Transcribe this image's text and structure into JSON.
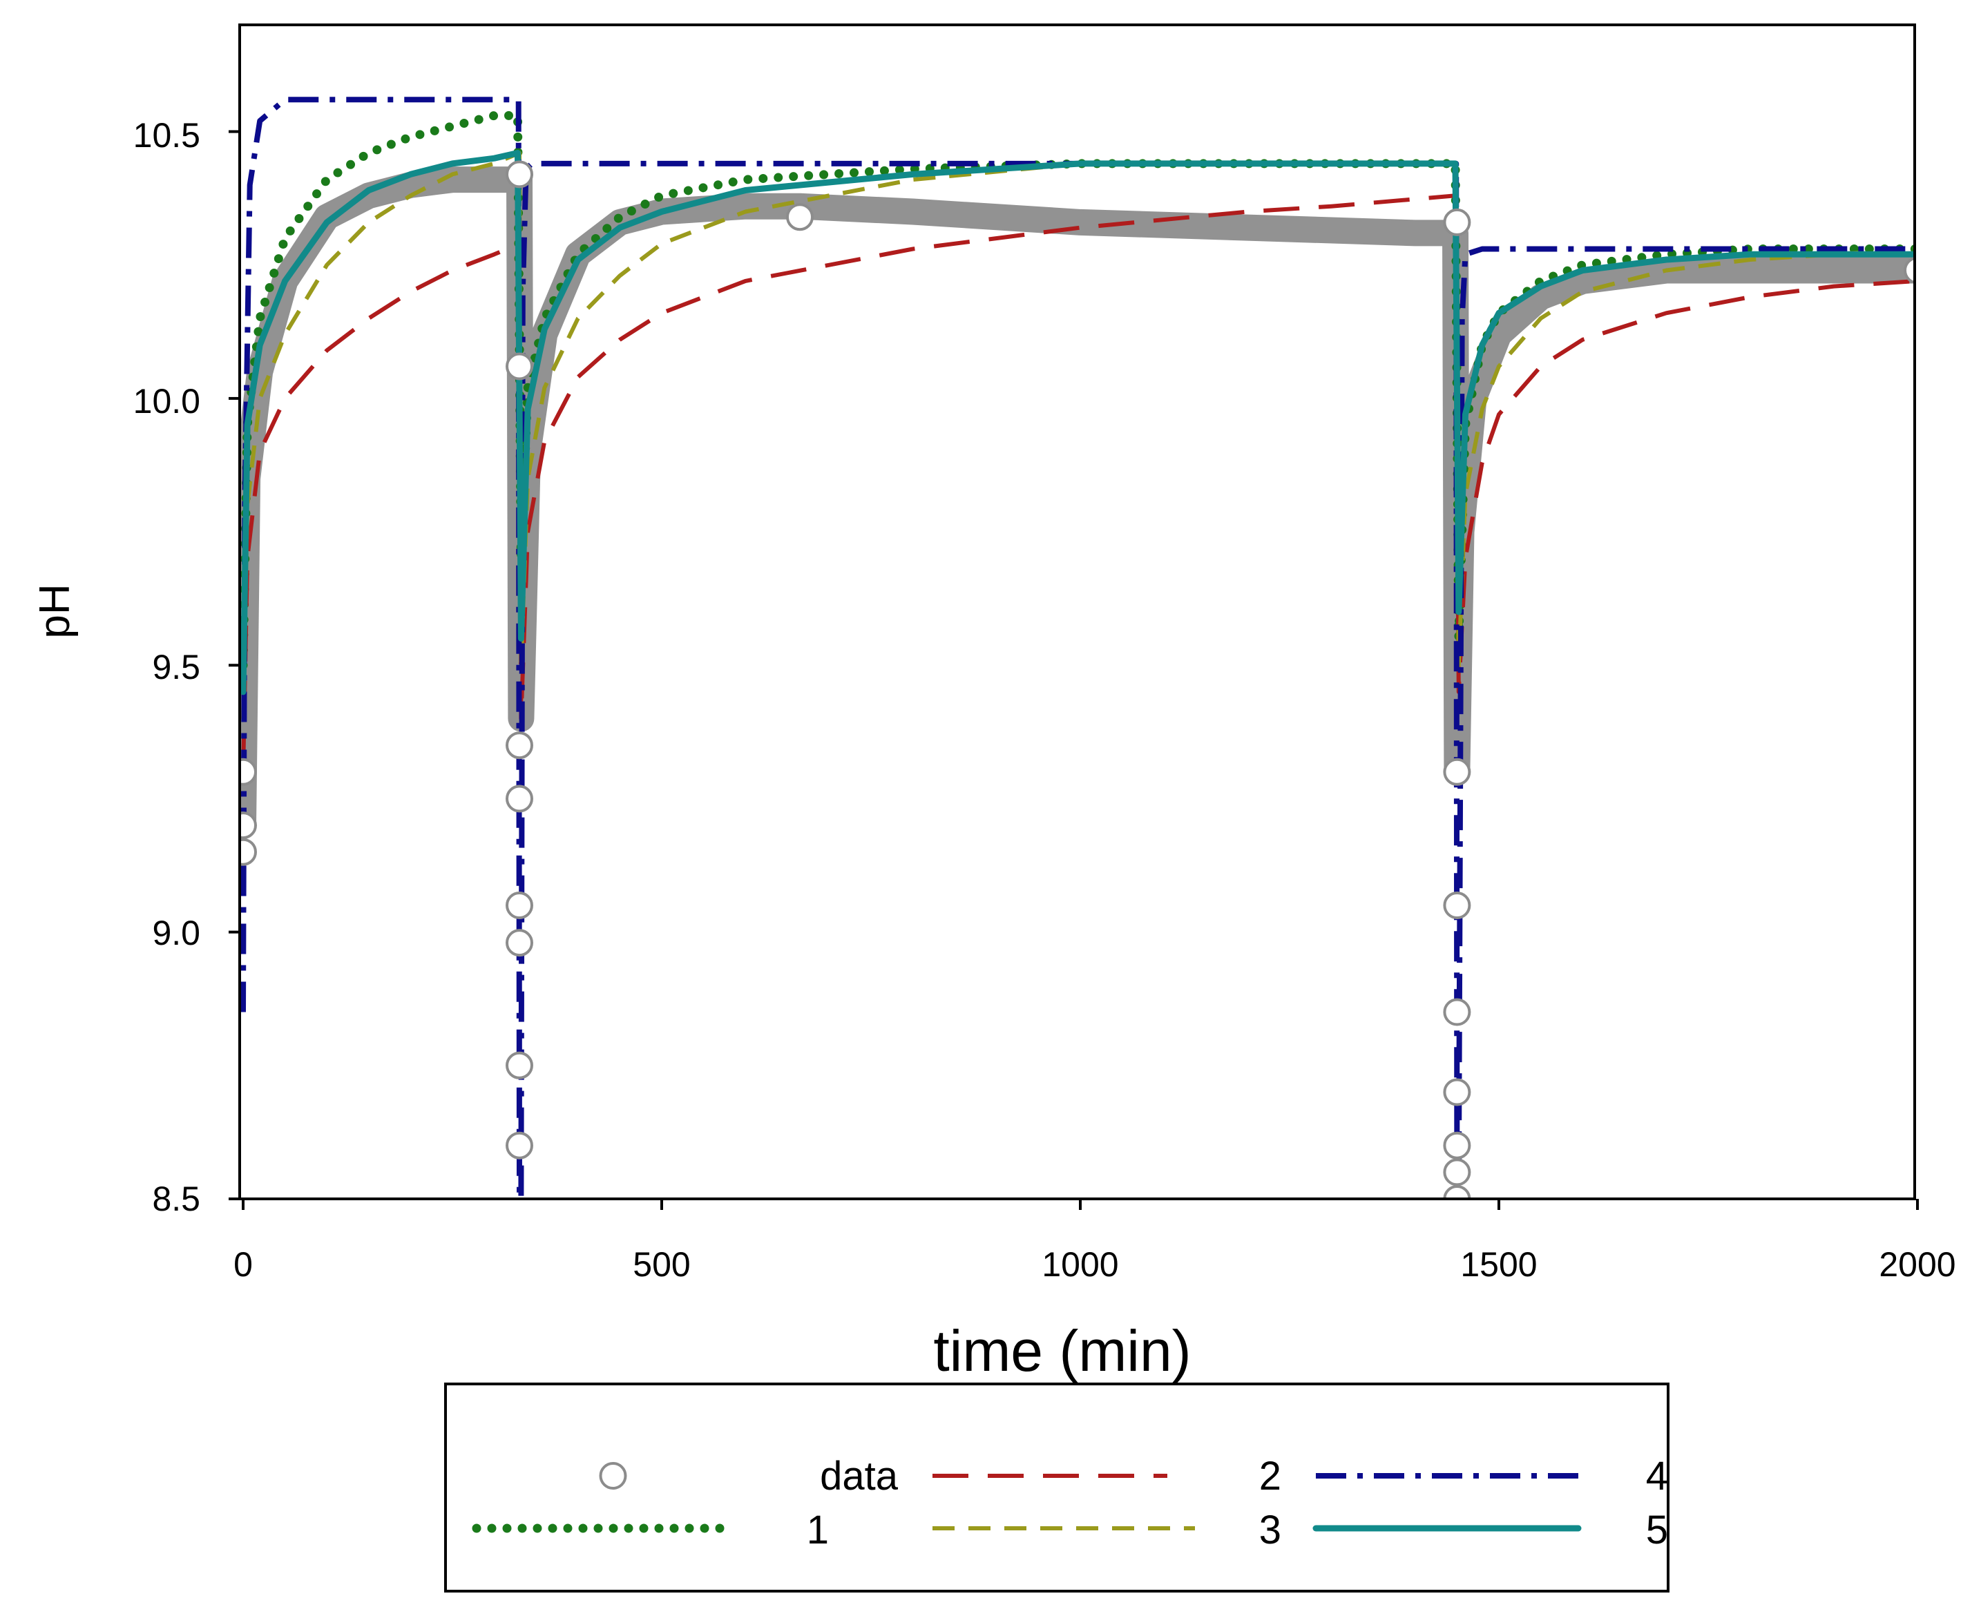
{
  "chart_data": {
    "type": "line",
    "title": "",
    "xlabel": "time (min)",
    "ylabel": "pH",
    "xlim": [
      0,
      2000
    ],
    "ylim": [
      8.5,
      10.7
    ],
    "xticks": [
      "0",
      "500",
      "1000",
      "1500",
      "2000"
    ],
    "yticks": [
      "8.5",
      "9.0",
      "9.5",
      "10.0",
      "10.5"
    ],
    "legend_position": "bottom",
    "colors": {
      "data": "#8c8c8c",
      "1": "#1a7a1a",
      "2": "#b01c1c",
      "3": "#9a9a1c",
      "4": "#0b0b8c",
      "5": "#118a8a"
    },
    "markers": {
      "x": [
        0,
        0,
        0,
        330,
        330,
        330,
        330,
        330,
        330,
        330,
        330,
        665,
        1450,
        1450,
        1450,
        1450,
        1450,
        1450,
        1450,
        1450,
        2000
      ],
      "y": [
        9.15,
        9.2,
        9.3,
        10.06,
        9.35,
        9.25,
        9.05,
        8.98,
        8.75,
        8.6,
        10.42,
        10.34,
        10.33,
        9.3,
        9.05,
        8.85,
        8.7,
        8.6,
        8.55,
        8.5,
        10.24
      ]
    },
    "series": [
      {
        "name": "data",
        "style": "thick-band",
        "x": [
          0,
          5,
          20,
          50,
          100,
          150,
          200,
          250,
          300,
          330,
          332,
          340,
          360,
          400,
          450,
          500,
          600,
          665,
          800,
          1000,
          1200,
          1400,
          1448,
          1450,
          1455,
          1470,
          1500,
          1550,
          1600,
          1700,
          1800,
          2000
        ],
        "y": [
          9.2,
          9.85,
          10.05,
          10.22,
          10.34,
          10.38,
          10.4,
          10.41,
          10.41,
          10.41,
          9.4,
          9.9,
          10.12,
          10.27,
          10.33,
          10.35,
          10.36,
          10.36,
          10.35,
          10.33,
          10.32,
          10.31,
          10.31,
          9.3,
          9.75,
          10.0,
          10.12,
          10.19,
          10.22,
          10.24,
          10.24,
          10.24
        ]
      },
      {
        "name": "1",
        "style": "dotted",
        "x": [
          0,
          5,
          20,
          50,
          100,
          150,
          200,
          250,
          300,
          328,
          332,
          340,
          360,
          400,
          450,
          500,
          600,
          800,
          1000,
          1200,
          1448,
          1452,
          1460,
          1480,
          1500,
          1550,
          1600,
          1700,
          1800,
          2000
        ],
        "y": [
          9.5,
          9.95,
          10.15,
          10.3,
          10.41,
          10.46,
          10.49,
          10.51,
          10.53,
          10.53,
          9.7,
          10.02,
          10.15,
          10.27,
          10.34,
          10.38,
          10.41,
          10.43,
          10.44,
          10.44,
          10.44,
          9.55,
          9.95,
          10.1,
          10.16,
          10.22,
          10.25,
          10.27,
          10.28,
          10.28
        ]
      },
      {
        "name": "2",
        "style": "long-dash",
        "x": [
          0,
          5,
          20,
          50,
          100,
          150,
          200,
          250,
          300,
          330,
          332,
          340,
          360,
          400,
          450,
          500,
          600,
          800,
          1000,
          1200,
          1300,
          1448,
          1452,
          1460,
          1480,
          1500,
          1550,
          1600,
          1700,
          1800,
          1900,
          2000
        ],
        "y": [
          9.3,
          9.7,
          9.9,
          10.0,
          10.09,
          10.15,
          10.2,
          10.24,
          10.27,
          10.29,
          9.4,
          9.75,
          9.92,
          10.04,
          10.11,
          10.16,
          10.22,
          10.28,
          10.32,
          10.35,
          10.36,
          10.38,
          9.45,
          9.7,
          9.88,
          9.97,
          10.06,
          10.11,
          10.16,
          10.19,
          10.21,
          10.22
        ]
      },
      {
        "name": "3",
        "style": "dash",
        "x": [
          0,
          5,
          20,
          50,
          100,
          150,
          200,
          250,
          300,
          330,
          332,
          340,
          360,
          400,
          450,
          500,
          600,
          800,
          1000,
          1200,
          1448,
          1452,
          1460,
          1480,
          1500,
          1550,
          1600,
          1700,
          1800,
          1900,
          2000
        ],
        "y": [
          9.4,
          9.8,
          10.0,
          10.12,
          10.25,
          10.33,
          10.38,
          10.42,
          10.44,
          10.46,
          9.5,
          9.85,
          10.02,
          10.15,
          10.23,
          10.29,
          10.35,
          10.41,
          10.44,
          10.44,
          10.44,
          9.5,
          9.82,
          9.98,
          10.06,
          10.15,
          10.2,
          10.24,
          10.26,
          10.27,
          10.28
        ]
      },
      {
        "name": "4",
        "style": "dash-dot",
        "x": [
          0,
          2,
          8,
          20,
          50,
          100,
          200,
          300,
          329,
          330,
          332,
          334,
          338,
          345,
          360,
          500,
          1000,
          1448,
          1449,
          1450,
          1452,
          1456,
          1460,
          1480,
          1500,
          1800,
          2000
        ],
        "y": [
          8.85,
          9.8,
          10.4,
          10.52,
          10.56,
          10.56,
          10.56,
          10.56,
          10.56,
          8.5,
          8.5,
          10.2,
          10.43,
          10.44,
          10.44,
          10.44,
          10.44,
          10.44,
          10.44,
          8.5,
          8.5,
          10.15,
          10.27,
          10.28,
          10.28,
          10.28,
          10.28
        ]
      },
      {
        "name": "5",
        "style": "solid",
        "x": [
          0,
          5,
          20,
          50,
          100,
          150,
          200,
          250,
          300,
          328,
          332,
          340,
          360,
          400,
          450,
          500,
          600,
          800,
          1000,
          1200,
          1448,
          1452,
          1460,
          1480,
          1500,
          1550,
          1600,
          1700,
          1800,
          2000
        ],
        "y": [
          9.45,
          9.95,
          10.1,
          10.22,
          10.33,
          10.39,
          10.42,
          10.44,
          10.45,
          10.46,
          9.55,
          9.98,
          10.13,
          10.26,
          10.32,
          10.35,
          10.39,
          10.42,
          10.44,
          10.44,
          10.44,
          9.6,
          9.97,
          10.1,
          10.16,
          10.21,
          10.24,
          10.26,
          10.27,
          10.27
        ]
      }
    ],
    "legend": {
      "entries": [
        {
          "series": "data",
          "label": "data"
        },
        {
          "series": "1",
          "label": "1"
        },
        {
          "series": "2",
          "label": "2"
        },
        {
          "series": "3",
          "label": "3"
        },
        {
          "series": "4",
          "label": "4"
        },
        {
          "series": "5",
          "label": "5"
        }
      ]
    }
  }
}
